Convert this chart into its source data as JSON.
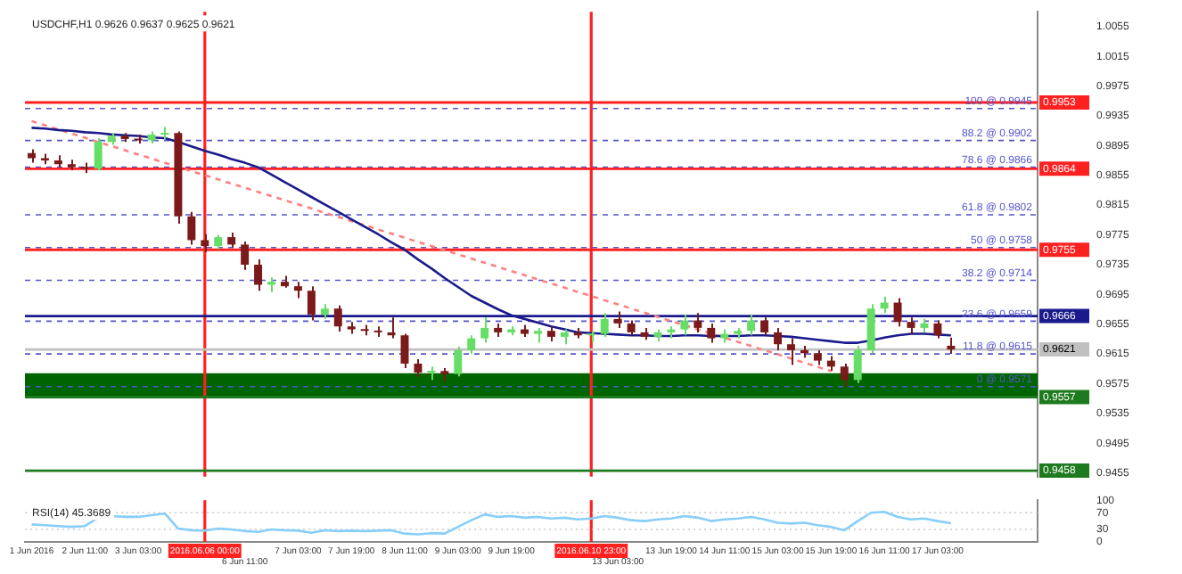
{
  "chart_data": [
    {
      "type": "candlestick",
      "title": "USDCHF,H1 0.9626 0.9637 0.9625 0.9621",
      "tick_labels": "y",
      "legend": false,
      "categories": [
        "1 Jun 2016",
        null,
        null,
        null,
        "2 Jun 11:00",
        null,
        null,
        null,
        "3 Jun 03:00",
        null,
        null,
        null,
        null,
        "2016.06.06 00:00",
        null,
        null,
        "6 Jun 11:00",
        null,
        null,
        null,
        "7 Jun 03:00",
        null,
        null,
        null,
        "7 Jun 19:00",
        null,
        null,
        null,
        "8 Jun 11:00",
        null,
        null,
        null,
        "9 Jun 03:00",
        null,
        null,
        null,
        "9 Jun 19:00",
        null,
        null,
        null,
        null,
        null,
        "2016.06.10 23:00",
        null,
        "13 Jun 03:00",
        null,
        null,
        null,
        "13 Jun 19:00",
        null,
        null,
        null,
        "14 Jun 11:00",
        null,
        null,
        null,
        "15 Jun 03:00",
        null,
        null,
        null,
        "15 Jun 19:00",
        null,
        null,
        null,
        "16 Jun 11:00",
        null,
        null,
        null,
        "17 Jun 03:00",
        null,
        null,
        null,
        null,
        null,
        null,
        null
      ],
      "ohlc": [
        [
          0.9885,
          0.989,
          0.9872,
          0.9878
        ],
        [
          0.9878,
          0.9884,
          0.987,
          0.9875
        ],
        [
          0.9875,
          0.9882,
          0.9866,
          0.987
        ],
        [
          0.987,
          0.9876,
          0.9862,
          0.9866
        ],
        [
          0.9866,
          0.9872,
          0.9858,
          0.9864
        ],
        [
          0.9864,
          0.9905,
          0.9862,
          0.99
        ],
        [
          0.99,
          0.9912,
          0.9896,
          0.9908
        ],
        [
          0.9908,
          0.9912,
          0.99,
          0.9904
        ],
        [
          0.9904,
          0.991,
          0.9898,
          0.9902
        ],
        [
          0.9902,
          0.9914,
          0.9898,
          0.991
        ],
        [
          0.991,
          0.992,
          0.9904,
          0.9912
        ],
        [
          0.9912,
          0.9914,
          0.979,
          0.98
        ],
        [
          0.98,
          0.9806,
          0.9762,
          0.9768
        ],
        [
          0.9768,
          0.9776,
          0.9752,
          0.976
        ],
        [
          0.976,
          0.9775,
          0.9756,
          0.9772
        ],
        [
          0.9772,
          0.9778,
          0.9758,
          0.9762
        ],
        [
          0.9762,
          0.9766,
          0.9728,
          0.9735
        ],
        [
          0.9735,
          0.9742,
          0.97,
          0.9708
        ],
        [
          0.9708,
          0.9718,
          0.9698,
          0.9712
        ],
        [
          0.9712,
          0.972,
          0.9704,
          0.9706
        ],
        [
          0.9706,
          0.9712,
          0.969,
          0.97
        ],
        [
          0.97,
          0.9706,
          0.966,
          0.9668
        ],
        [
          0.9668,
          0.9682,
          0.9662,
          0.9676
        ],
        [
          0.9676,
          0.968,
          0.9645,
          0.9652
        ],
        [
          0.9652,
          0.9658,
          0.9642,
          0.9648
        ],
        [
          0.9648,
          0.9654,
          0.964,
          0.9646
        ],
        [
          0.9646,
          0.9652,
          0.9638,
          0.9644
        ],
        [
          0.9644,
          0.9664,
          0.9636,
          0.964
        ],
        [
          0.964,
          0.9642,
          0.9596,
          0.9602
        ],
        [
          0.9602,
          0.9608,
          0.9584,
          0.959
        ],
        [
          0.959,
          0.9598,
          0.958,
          0.9592
        ],
        [
          0.9592,
          0.9596,
          0.9578,
          0.9588
        ],
        [
          0.9588,
          0.9625,
          0.9585,
          0.962
        ],
        [
          0.962,
          0.964,
          0.9615,
          0.9636
        ],
        [
          0.9636,
          0.9664,
          0.963,
          0.965
        ],
        [
          0.965,
          0.9656,
          0.9638,
          0.9644
        ],
        [
          0.9644,
          0.9652,
          0.964,
          0.9648
        ],
        [
          0.9648,
          0.9654,
          0.9638,
          0.9642
        ],
        [
          0.9642,
          0.965,
          0.963,
          0.9646
        ],
        [
          0.9646,
          0.9652,
          0.9632,
          0.9638
        ],
        [
          0.9638,
          0.9648,
          0.9628,
          0.9644
        ],
        [
          0.9644,
          0.965,
          0.9636,
          0.964
        ],
        [
          0.964,
          0.9646,
          0.963,
          0.9642
        ],
        [
          0.9642,
          0.967,
          0.9638,
          0.9662
        ],
        [
          0.9662,
          0.9672,
          0.965,
          0.9656
        ],
        [
          0.9656,
          0.966,
          0.964,
          0.9644
        ],
        [
          0.9644,
          0.965,
          0.9634,
          0.9638
        ],
        [
          0.9638,
          0.9648,
          0.9632,
          0.9644
        ],
        [
          0.9644,
          0.9652,
          0.9636,
          0.9648
        ],
        [
          0.9648,
          0.9668,
          0.964,
          0.966
        ],
        [
          0.966,
          0.967,
          0.9644,
          0.965
        ],
        [
          0.965,
          0.9656,
          0.963,
          0.9636
        ],
        [
          0.9636,
          0.9648,
          0.963,
          0.9642
        ],
        [
          0.9642,
          0.965,
          0.9636,
          0.9646
        ],
        [
          0.9646,
          0.9668,
          0.964,
          0.966
        ],
        [
          0.966,
          0.9664,
          0.964,
          0.9644
        ],
        [
          0.9644,
          0.965,
          0.962,
          0.9628
        ],
        [
          0.9628,
          0.9636,
          0.96,
          0.962
        ],
        [
          0.962,
          0.9626,
          0.961,
          0.9616
        ],
        [
          0.9616,
          0.962,
          0.96,
          0.9606
        ],
        [
          0.9606,
          0.9612,
          0.9592,
          0.9598
        ],
        [
          0.9598,
          0.9602,
          0.9571,
          0.958
        ],
        [
          0.958,
          0.9626,
          0.9576,
          0.962
        ],
        [
          0.962,
          0.9682,
          0.9616,
          0.9676
        ],
        [
          0.9676,
          0.9692,
          0.967,
          0.9684
        ],
        [
          0.9684,
          0.969,
          0.9652,
          0.9658
        ],
        [
          0.9658,
          0.9664,
          0.9642,
          0.965
        ],
        [
          0.965,
          0.9662,
          0.9644,
          0.9656
        ],
        [
          0.9656,
          0.966,
          0.9636,
          0.964
        ],
        [
          0.9626,
          0.9637,
          0.9615,
          0.9621
        ],
        null,
        null,
        null,
        null,
        null,
        null
      ],
      "colors": [
        "#7a1a1a",
        "#7a1a1a",
        "#7a1a1a",
        "#7a1a1a",
        "#7a1a1a",
        "#66dd66",
        "#66dd66",
        "#7a1a1a",
        "#7a1a1a",
        "#66dd66",
        "#66dd66",
        "#7a1a1a",
        "#7a1a1a",
        "#7a1a1a",
        "#66dd66",
        "#7a1a1a",
        "#7a1a1a",
        "#7a1a1a",
        "#66dd66",
        "#7a1a1a",
        "#7a1a1a",
        "#7a1a1a",
        "#66dd66",
        "#7a1a1a",
        "#7a1a1a",
        "#7a1a1a",
        "#7a1a1a",
        "#7a1a1a",
        "#7a1a1a",
        "#7a1a1a",
        "#66dd66",
        "#7a1a1a",
        "#66dd66",
        "#66dd66",
        "#66dd66",
        "#7a1a1a",
        "#66dd66",
        "#7a1a1a",
        "#66dd66",
        "#7a1a1a",
        "#66dd66",
        "#7a1a1a",
        "#66dd66",
        "#66dd66",
        "#7a1a1a",
        "#7a1a1a",
        "#7a1a1a",
        "#66dd66",
        "#66dd66",
        "#66dd66",
        "#7a1a1a",
        "#7a1a1a",
        "#66dd66",
        "#66dd66",
        "#66dd66",
        "#7a1a1a",
        "#7a1a1a",
        "#7a1a1a",
        "#7a1a1a",
        "#7a1a1a",
        "#7a1a1a",
        "#7a1a1a",
        "#66dd66",
        "#66dd66",
        "#66dd66",
        "#7a1a1a",
        "#7a1a1a",
        "#66dd66",
        "#7a1a1a",
        "#7a1a1a",
        null,
        null,
        null,
        null,
        null,
        null
      ],
      "series": [
        {
          "type": "line",
          "color": "#1a1a8c",
          "values": [
            0.9919,
            0.9918,
            0.9916,
            0.9915,
            0.9913,
            0.9912,
            0.991,
            0.9909,
            0.9908,
            0.9906,
            0.9905,
            0.99,
            0.9894,
            0.9888,
            0.9883,
            0.9877,
            0.9872,
            0.9866,
            0.9856,
            0.9846,
            0.9836,
            0.9826,
            0.9816,
            0.9806,
            0.9796,
            0.9786,
            0.9776,
            0.9765,
            0.9755,
            0.9742,
            0.973,
            0.9717,
            0.9705,
            0.9693,
            0.9684,
            0.9675,
            0.9667,
            0.9662,
            0.9657,
            0.9652,
            0.9648,
            0.9644,
            0.9643,
            0.9642,
            0.9641,
            0.964,
            0.964,
            0.9639,
            0.9639,
            0.964,
            0.964,
            0.9639,
            0.9639,
            0.9639,
            0.964,
            0.964,
            0.9639,
            0.9638,
            0.9636,
            0.9634,
            0.9632,
            0.963,
            0.963,
            0.9633,
            0.9637,
            0.964,
            0.9642,
            0.9642,
            0.9641,
            0.964,
            null,
            null,
            null,
            null,
            null,
            null
          ]
        },
        {
          "type": "line",
          "color": "#ff8080",
          "line_style": "dashed",
          "x": [
            "1 Jun 2016",
            "15 Jun 19:00"
          ],
          "values": [
            0.9928,
            0.9592
          ]
        }
      ],
      "ylim": [
        0.945,
        1.0075
      ],
      "yticks": [
        0.9455,
        0.9495,
        0.9535,
        0.9575,
        0.9615,
        0.9655,
        0.9695,
        0.9735,
        0.9775,
        0.9815,
        0.9855,
        0.9895,
        0.9935,
        0.9975,
        1.0015,
        1.0055
      ],
      "bands": [
        {
          "axis": "y",
          "from": 0.9557,
          "to": 0.9589,
          "color": "#006400"
        }
      ],
      "ref_lines": [
        {
          "axis": "x",
          "value": "2016.06.06 00:00",
          "color": "#ff2020"
        },
        {
          "axis": "x",
          "value": "2016.06.10 23:00",
          "color": "#ff2020"
        },
        {
          "axis": "y",
          "value": 0.9945,
          "label": "100 @ 0.9945",
          "color": "#5555cc",
          "line_style": "dashed"
        },
        {
          "axis": "y",
          "value": 0.9902,
          "label": "88.2 @ 0.9902",
          "color": "#5555cc",
          "line_style": "dashed"
        },
        {
          "axis": "y",
          "value": 0.9866,
          "label": "78.6 @ 0.9866",
          "color": "#5555cc",
          "line_style": "dashed"
        },
        {
          "axis": "y",
          "value": 0.9802,
          "label": "61.8 @ 0.9802",
          "color": "#5555cc",
          "line_style": "dashed"
        },
        {
          "axis": "y",
          "value": 0.9758,
          "label": "50 @ 0.9758",
          "color": "#5555cc",
          "line_style": "dashed"
        },
        {
          "axis": "y",
          "value": 0.9714,
          "label": "38.2 @ 0.9714",
          "color": "#5555cc",
          "line_style": "dashed"
        },
        {
          "axis": "y",
          "value": 0.9659,
          "label": "23.6 @ 0.9659",
          "color": "#5555cc",
          "line_style": "dashed"
        },
        {
          "axis": "y",
          "value": 0.9615,
          "label": "11.8 @ 0.9615",
          "color": "#5555cc",
          "line_style": "dashed"
        },
        {
          "axis": "y",
          "value": 0.9571,
          "label": "0 @ 0.9571",
          "color": "#5555cc",
          "line_style": "dashed"
        },
        {
          "axis": "y",
          "value": 0.9953,
          "label": "0.9953",
          "color": "#ff2020"
        },
        {
          "axis": "y",
          "value": 0.9864,
          "label": "0.9864",
          "color": "#ff2020"
        },
        {
          "axis": "y",
          "value": 0.9755,
          "label": "0.9755",
          "color": "#ff2020"
        },
        {
          "axis": "y",
          "value": 0.9666,
          "label": "0.9666",
          "color": "#1a1a8c"
        },
        {
          "axis": "y",
          "value": 0.9621,
          "label": "0.9621",
          "color": "#c0c0c0"
        },
        {
          "axis": "y",
          "value": 0.9557,
          "label": "0.9557",
          "color": "#1e7a1e"
        },
        {
          "axis": "y",
          "value": 0.9458,
          "label": "0.9458",
          "color": "#1e7a1e"
        }
      ]
    },
    {
      "type": "line",
      "title": "RSI(14) 45.3689",
      "legend": false,
      "categories": [
        "1 Jun 2016",
        null,
        null,
        null,
        "2 Jun 11:00",
        null,
        null,
        null,
        "3 Jun 03:00",
        null,
        null,
        null,
        null,
        "2016.06.06 00:00",
        null,
        null,
        "6 Jun 11:00",
        null,
        null,
        null,
        "7 Jun 03:00",
        null,
        null,
        null,
        "7 Jun 19:00",
        null,
        null,
        null,
        "8 Jun 11:00",
        null,
        null,
        null,
        "9 Jun 03:00",
        null,
        null,
        null,
        "9 Jun 19:00",
        null,
        null,
        null,
        null,
        null,
        "2016.06.10 23:00",
        null,
        "13 Jun 03:00",
        null,
        null,
        null,
        "13 Jun 19:00",
        null,
        null,
        null,
        "14 Jun 11:00",
        null,
        null,
        null,
        "15 Jun 03:00",
        null,
        null,
        null,
        "15 Jun 19:00",
        null,
        null,
        null,
        "16 Jun 11:00",
        null,
        null,
        null,
        "17 Jun 03:00",
        null,
        null,
        null,
        null,
        null,
        null,
        null
      ],
      "series": [
        {
          "color": "#87cefa",
          "values": [
            42,
            40,
            38,
            36,
            38,
            58,
            62,
            60,
            60,
            64,
            68,
            32,
            28,
            27,
            32,
            30,
            26,
            24,
            30,
            28,
            27,
            22,
            28,
            26,
            27,
            26,
            27,
            28,
            20,
            18,
            21,
            20,
            36,
            52,
            66,
            60,
            62,
            58,
            60,
            56,
            58,
            54,
            56,
            62,
            58,
            52,
            50,
            54,
            56,
            62,
            58,
            50,
            54,
            56,
            60,
            54,
            46,
            44,
            46,
            40,
            36,
            28,
            50,
            70,
            72,
            60,
            54,
            56,
            50,
            45,
            null,
            null,
            null,
            null,
            null,
            null
          ]
        }
      ],
      "ylim": [
        0,
        100
      ],
      "yticks": [
        0,
        30,
        70,
        100
      ],
      "ref_lines": [
        {
          "axis": "x",
          "value": "2016.06.06 00:00",
          "color": "#ff2020"
        },
        {
          "axis": "x",
          "value": "2016.06.10 23:00",
          "color": "#ff2020"
        },
        {
          "axis": "y",
          "value": 70,
          "color": "#c8c8c8",
          "line_style": "dotted"
        },
        {
          "axis": "y",
          "value": 30,
          "color": "#c8c8c8",
          "line_style": "dotted"
        }
      ]
    }
  ]
}
